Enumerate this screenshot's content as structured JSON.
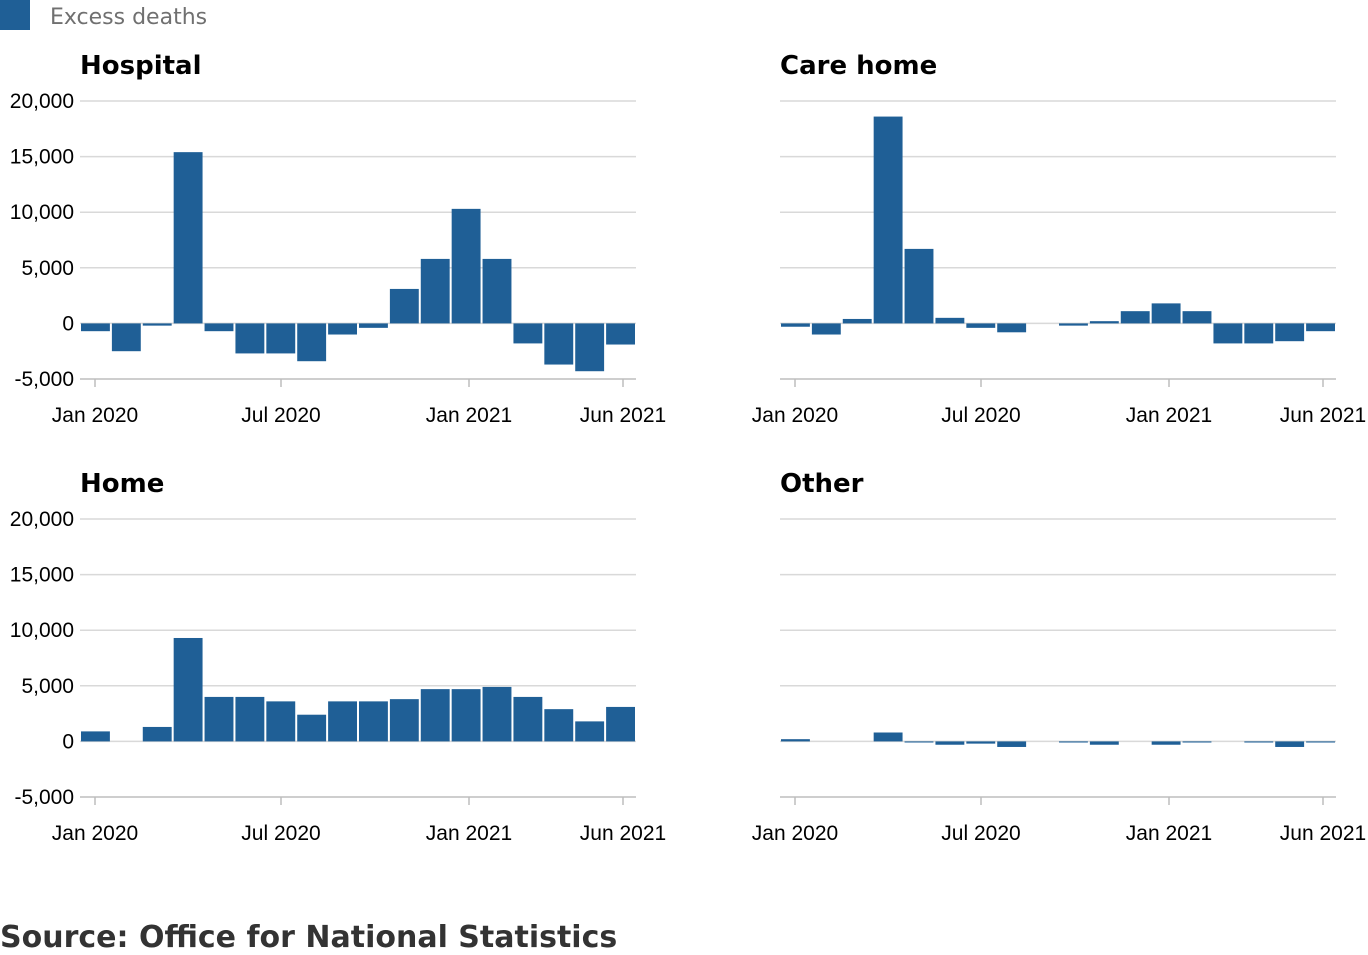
{
  "legend": {
    "label": "Excess deaths",
    "color": "#1f5f96"
  },
  "source": "Source: Office for National Statistics",
  "colors": {
    "bar": "#1f5f96",
    "grid": "#d9d9d9",
    "axis": "#bdbdbd",
    "text": "#000000"
  },
  "chart_data": [
    {
      "type": "bar",
      "title": "Hospital",
      "categories": [
        "Jan 2020",
        "Feb 2020",
        "Mar 2020",
        "Apr 2020",
        "May 2020",
        "Jun 2020",
        "Jul 2020",
        "Aug 2020",
        "Sep 2020",
        "Oct 2020",
        "Nov 2020",
        "Dec 2020",
        "Jan 2021",
        "Feb 2021",
        "Mar 2021",
        "Apr 2021",
        "May 2021",
        "Jun 2021"
      ],
      "values": [
        -700,
        -2500,
        -200,
        15400,
        -700,
        -2700,
        -2700,
        -3400,
        -1000,
        -400,
        3100,
        5800,
        10300,
        5800,
        -1800,
        -3700,
        -4300,
        -1900
      ],
      "y_ticks": [
        20000,
        15000,
        10000,
        5000,
        0,
        -5000
      ],
      "y_tick_labels": [
        "20,000",
        "15,000",
        "10,000",
        "5,000",
        "0",
        "-5,000"
      ],
      "ylim": [
        -5000,
        20000
      ],
      "x_ticks": [
        "Jan 2020",
        "Jul 2020",
        "Jan 2021",
        "Jun 2021"
      ],
      "show_y_labels": true,
      "grid": true
    },
    {
      "type": "bar",
      "title": "Care home",
      "categories": [
        "Jan 2020",
        "Feb 2020",
        "Mar 2020",
        "Apr 2020",
        "May 2020",
        "Jun 2020",
        "Jul 2020",
        "Aug 2020",
        "Sep 2020",
        "Oct 2020",
        "Nov 2020",
        "Dec 2020",
        "Jan 2021",
        "Feb 2021",
        "Mar 2021",
        "Apr 2021",
        "May 2021",
        "Jun 2021"
      ],
      "values": [
        -300,
        -1000,
        400,
        18600,
        6700,
        500,
        -400,
        -800,
        0,
        -200,
        200,
        1100,
        1800,
        1100,
        -1800,
        -1800,
        -1600,
        -700
      ],
      "y_ticks": [
        20000,
        15000,
        10000,
        5000,
        0,
        -5000
      ],
      "y_tick_labels": [
        "20,000",
        "15,000",
        "10,000",
        "5,000",
        "0",
        "-5,000"
      ],
      "ylim": [
        -5000,
        20000
      ],
      "x_ticks": [
        "Jan 2020",
        "Jul 2020",
        "Jan 2021",
        "Jun 2021"
      ],
      "show_y_labels": false,
      "grid": true
    },
    {
      "type": "bar",
      "title": "Home",
      "categories": [
        "Jan 2020",
        "Feb 2020",
        "Mar 2020",
        "Apr 2020",
        "May 2020",
        "Jun 2020",
        "Jul 2020",
        "Aug 2020",
        "Sep 2020",
        "Oct 2020",
        "Nov 2020",
        "Dec 2020",
        "Jan 2021",
        "Feb 2021",
        "Mar 2021",
        "Apr 2021",
        "May 2021",
        "Jun 2021"
      ],
      "values": [
        900,
        0,
        1300,
        9300,
        4000,
        4000,
        3600,
        2400,
        3600,
        3600,
        3800,
        4700,
        4700,
        4900,
        4000,
        2900,
        1800,
        3100
      ],
      "y_ticks": [
        20000,
        15000,
        10000,
        5000,
        0,
        -5000
      ],
      "y_tick_labels": [
        "20,000",
        "15,000",
        "10,000",
        "5,000",
        "0",
        "-5,000"
      ],
      "ylim": [
        -5000,
        20000
      ],
      "x_ticks": [
        "Jan 2020",
        "Jul 2020",
        "Jan 2021",
        "Jun 2021"
      ],
      "show_y_labels": true,
      "grid": true
    },
    {
      "type": "bar",
      "title": "Other",
      "categories": [
        "Jan 2020",
        "Feb 2020",
        "Mar 2020",
        "Apr 2020",
        "May 2020",
        "Jun 2020",
        "Jul 2020",
        "Aug 2020",
        "Sep 2020",
        "Oct 2020",
        "Nov 2020",
        "Dec 2020",
        "Jan 2021",
        "Feb 2021",
        "Mar 2021",
        "Apr 2021",
        "May 2021",
        "Jun 2021"
      ],
      "values": [
        200,
        0,
        0,
        800,
        -100,
        -300,
        -200,
        -500,
        0,
        -100,
        -300,
        0,
        -300,
        -100,
        0,
        -100,
        -500,
        -100
      ],
      "y_ticks": [
        20000,
        15000,
        10000,
        5000,
        0,
        -5000
      ],
      "y_tick_labels": [
        "20,000",
        "15,000",
        "10,000",
        "5,000",
        "0",
        "-5,000"
      ],
      "ylim": [
        -5000,
        20000
      ],
      "x_ticks": [
        "Jan 2020",
        "Jul 2020",
        "Jan 2021",
        "Jun 2021"
      ],
      "show_y_labels": false,
      "grid": true
    }
  ]
}
